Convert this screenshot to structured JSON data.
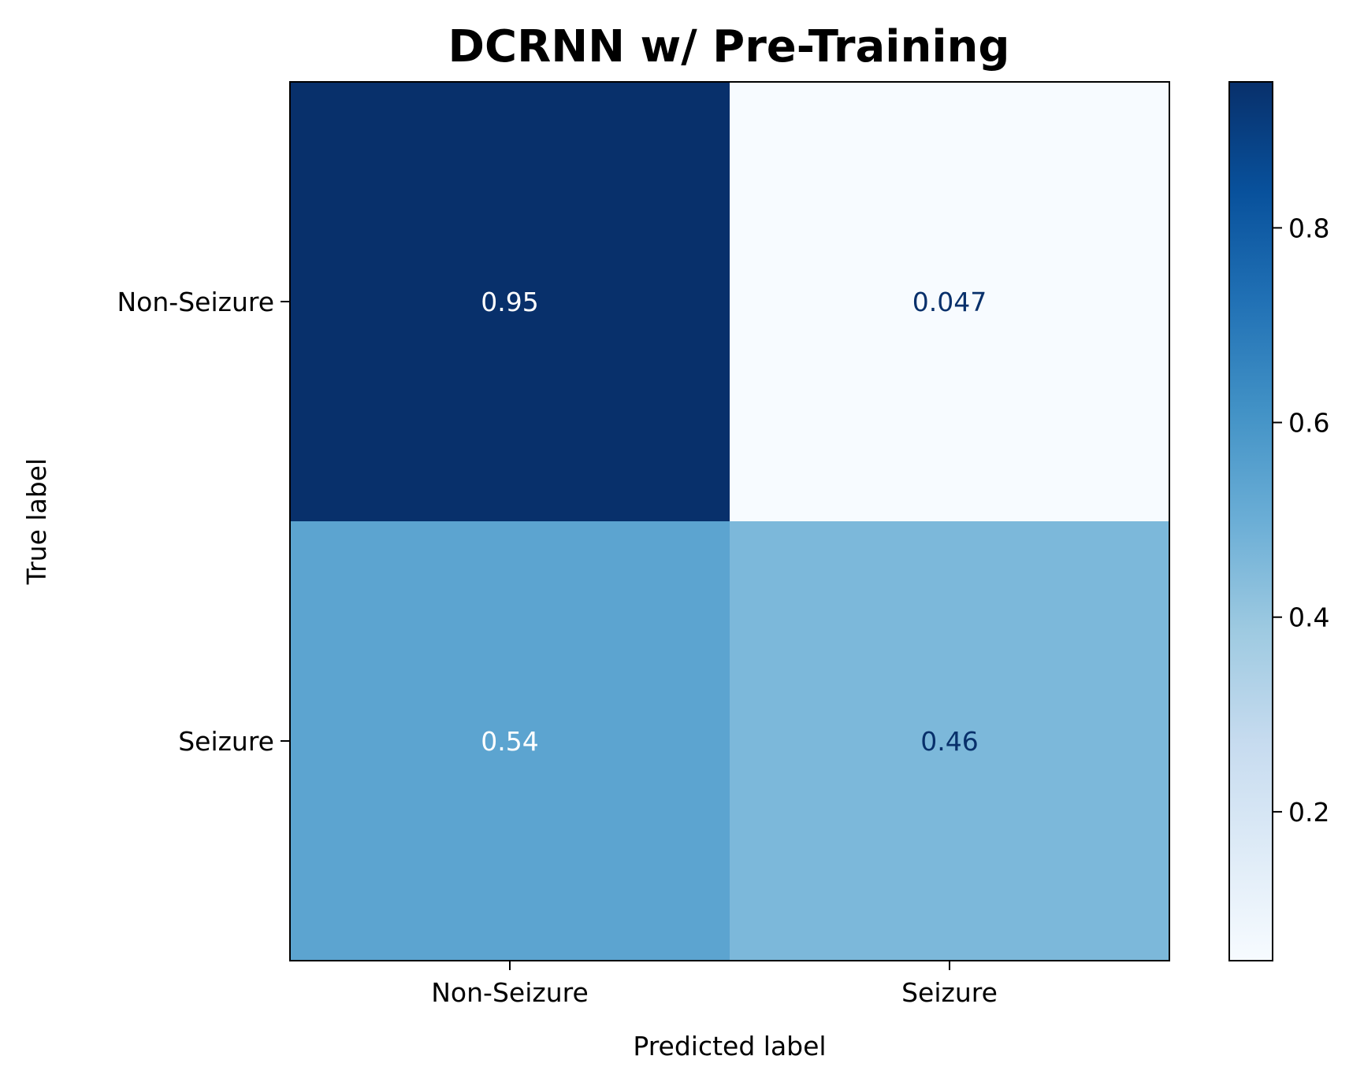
{
  "chart_data": {
    "type": "heatmap",
    "title": "DCRNN w/ Pre-Training",
    "xlabel": "Predicted label",
    "ylabel": "True label",
    "x_categories": [
      "Non-Seizure",
      "Seizure"
    ],
    "y_categories": [
      "Non-Seizure",
      "Seizure"
    ],
    "values": [
      [
        0.95,
        0.047
      ],
      [
        0.54,
        0.46
      ]
    ],
    "cell_labels": [
      [
        "0.95",
        "0.047"
      ],
      [
        "0.54",
        "0.46"
      ]
    ],
    "colormap": "Blues",
    "colorbar": {
      "range": [
        0.047,
        0.95
      ],
      "ticks": [
        0.2,
        0.4,
        0.6,
        0.8
      ],
      "tick_labels": [
        "0.2",
        "0.4",
        "0.6",
        "0.8"
      ]
    },
    "text_colors": {
      "dark_cell": "#ffffff",
      "light_cell": "#08306b"
    },
    "grid": false
  }
}
